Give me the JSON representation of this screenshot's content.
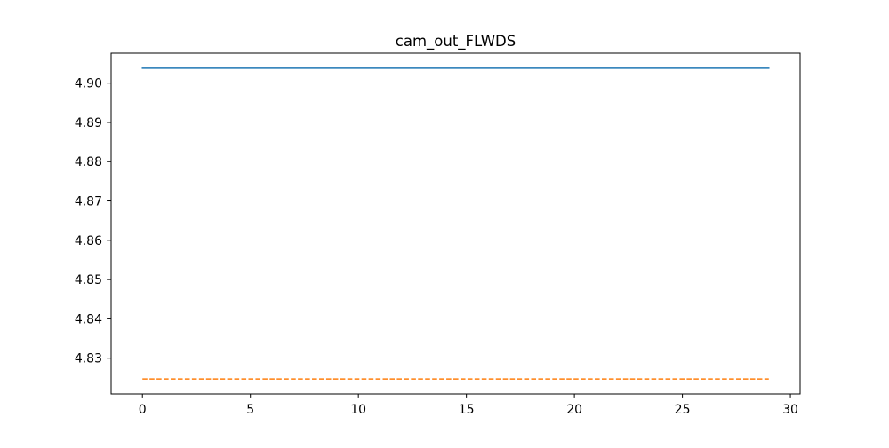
{
  "chart_data": {
    "type": "line",
    "title": "cam_out_FLWDS",
    "xlabel": "",
    "ylabel": "",
    "xlim": [
      -1.45,
      30.45
    ],
    "ylim": [
      4.8209,
      4.9076
    ],
    "xticks": [
      0,
      5,
      10,
      15,
      20,
      25,
      30
    ],
    "yticks": [
      4.83,
      4.84,
      4.85,
      4.86,
      4.87,
      4.88,
      4.89,
      4.9
    ],
    "ytick_labels": [
      "4.83",
      "4.84",
      "4.85",
      "4.86",
      "4.87",
      "4.88",
      "4.89",
      "4.90"
    ],
    "grid": false,
    "legend": false,
    "series": [
      {
        "color": "#1f77b4",
        "line_style": "solid",
        "x": [
          0,
          1,
          2,
          3,
          4,
          5,
          6,
          7,
          8,
          9,
          10,
          11,
          12,
          13,
          14,
          15,
          16,
          17,
          18,
          19,
          20,
          21,
          22,
          23,
          24,
          25,
          26,
          27,
          28,
          29
        ],
        "y": [
          4.9038,
          4.9038,
          4.9038,
          4.9038,
          4.9038,
          4.9038,
          4.9038,
          4.9038,
          4.9038,
          4.9038,
          4.9038,
          4.9038,
          4.9038,
          4.9038,
          4.9038,
          4.9038,
          4.9038,
          4.9038,
          4.9038,
          4.9038,
          4.9038,
          4.9038,
          4.9038,
          4.9038,
          4.9038,
          4.9038,
          4.9038,
          4.9038,
          4.9038,
          4.9038
        ]
      },
      {
        "color": "#ff7f0e",
        "line_style": "dashed",
        "x": [
          0,
          1,
          2,
          3,
          4,
          5,
          6,
          7,
          8,
          9,
          10,
          11,
          12,
          13,
          14,
          15,
          16,
          17,
          18,
          19,
          20,
          21,
          22,
          23,
          24,
          25,
          26,
          27,
          28,
          29
        ],
        "y": [
          4.8247,
          4.8247,
          4.8247,
          4.8247,
          4.8247,
          4.8247,
          4.8247,
          4.8247,
          4.8247,
          4.8247,
          4.8247,
          4.8247,
          4.8247,
          4.8247,
          4.8247,
          4.8247,
          4.8247,
          4.8247,
          4.8247,
          4.8247,
          4.8247,
          4.8247,
          4.8247,
          4.8247,
          4.8247,
          4.8247,
          4.8247,
          4.8247,
          4.8247,
          4.8247
        ]
      }
    ]
  }
}
